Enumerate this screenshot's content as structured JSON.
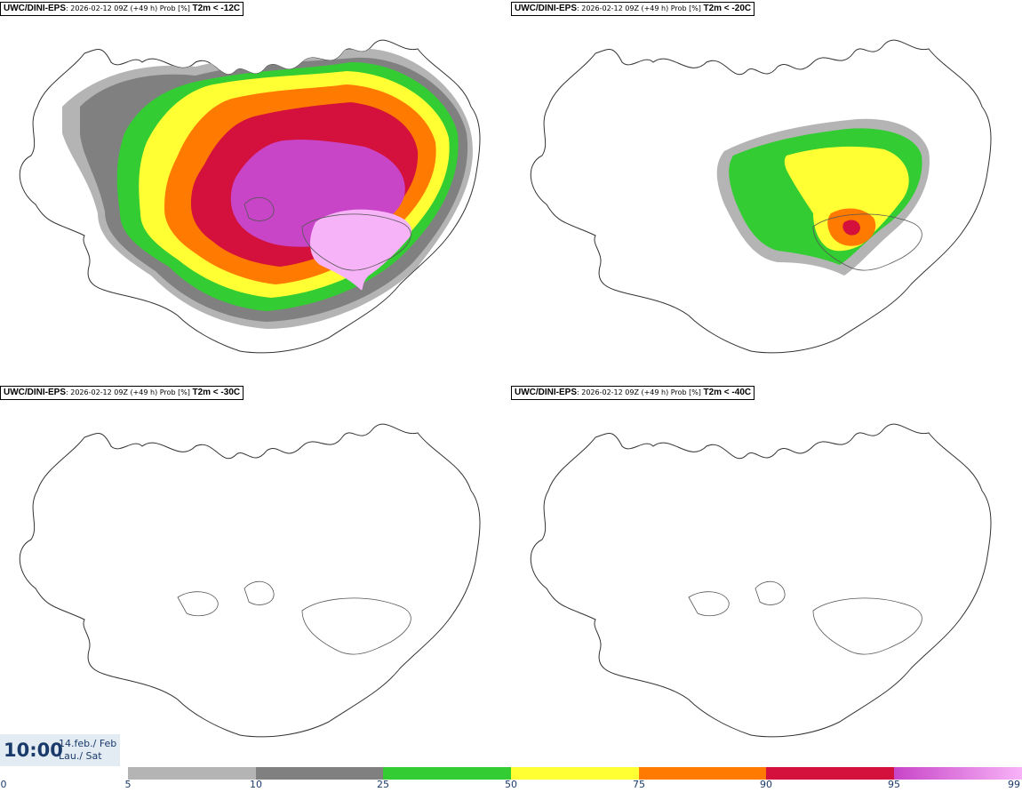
{
  "panels": [
    {
      "model": "UWC/DINI-EPS",
      "run": ": 2026-02-12 09Z (+49 h) Prob [%]",
      "variable": "T2m < -12C"
    },
    {
      "model": "UWC/DINI-EPS",
      "run": ": 2026-02-12 09Z (+49 h) Prob [%]",
      "variable": "T2m < -20C"
    },
    {
      "model": "UWC/DINI-EPS",
      "run": ": 2026-02-12 09Z (+49 h) Prob [%]",
      "variable": "T2m < -30C"
    },
    {
      "model": "UWC/DINI-EPS",
      "run": ": 2026-02-12 09Z (+49 h) Prob [%]",
      "variable": "T2m < -40C"
    }
  ],
  "valid_time": {
    "time": "10:00",
    "date": "14.feb./ Feb",
    "day": "Lau./ Sat"
  },
  "legend": {
    "ticks": [
      "0",
      "5",
      "10",
      "25",
      "50",
      "75",
      "90",
      "95",
      "99"
    ],
    "colors": [
      "#ffffff",
      "#b4b4b4",
      "#808080",
      "#33cc33",
      "#ffff33",
      "#ff7a00",
      "#d4103c",
      "#c845c8",
      "#f7b3f7"
    ]
  },
  "colors": {
    "outline": "#333333",
    "timebox_text": "#1a3a6a",
    "timebox_bg": "#e3ebf3"
  }
}
